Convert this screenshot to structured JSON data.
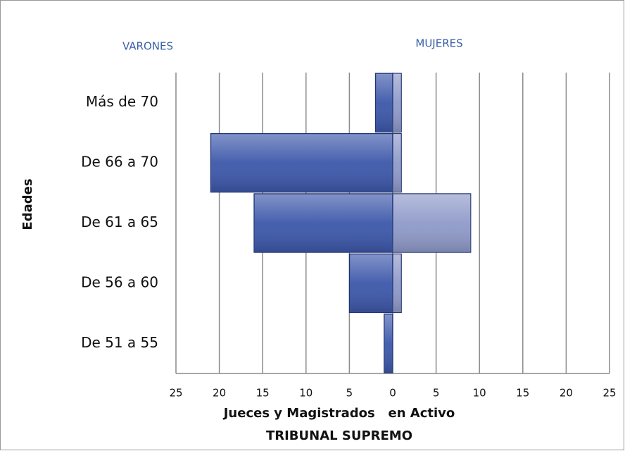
{
  "chart_data": {
    "type": "pyramid",
    "categories": [
      "Más de 70",
      "De 66 a 70",
      "De 61 a 65",
      "De 56 a 60",
      "De 51 a 55"
    ],
    "series": [
      {
        "name": "VARONES",
        "color": "#3d58aa",
        "values": [
          -2,
          -21,
          -16,
          -5,
          -1
        ]
      },
      {
        "name": "MUJERES",
        "color": "#8f9ac9",
        "values": [
          1,
          1,
          9,
          1,
          0
        ]
      }
    ],
    "ylabel": "Edades",
    "xlabel": "Jueces y Magistrados   en Activo",
    "subtitle": "TRIBUNAL SUPREMO",
    "xlim": [
      -25,
      25
    ],
    "xticks": [
      {
        "value": -25,
        "label": "25"
      },
      {
        "value": -20,
        "label": "20"
      },
      {
        "value": -15,
        "label": "15"
      },
      {
        "value": -10,
        "label": "10"
      },
      {
        "value": -5,
        "label": "5"
      },
      0,
      5,
      10,
      15,
      20,
      25
    ],
    "grid": true
  }
}
